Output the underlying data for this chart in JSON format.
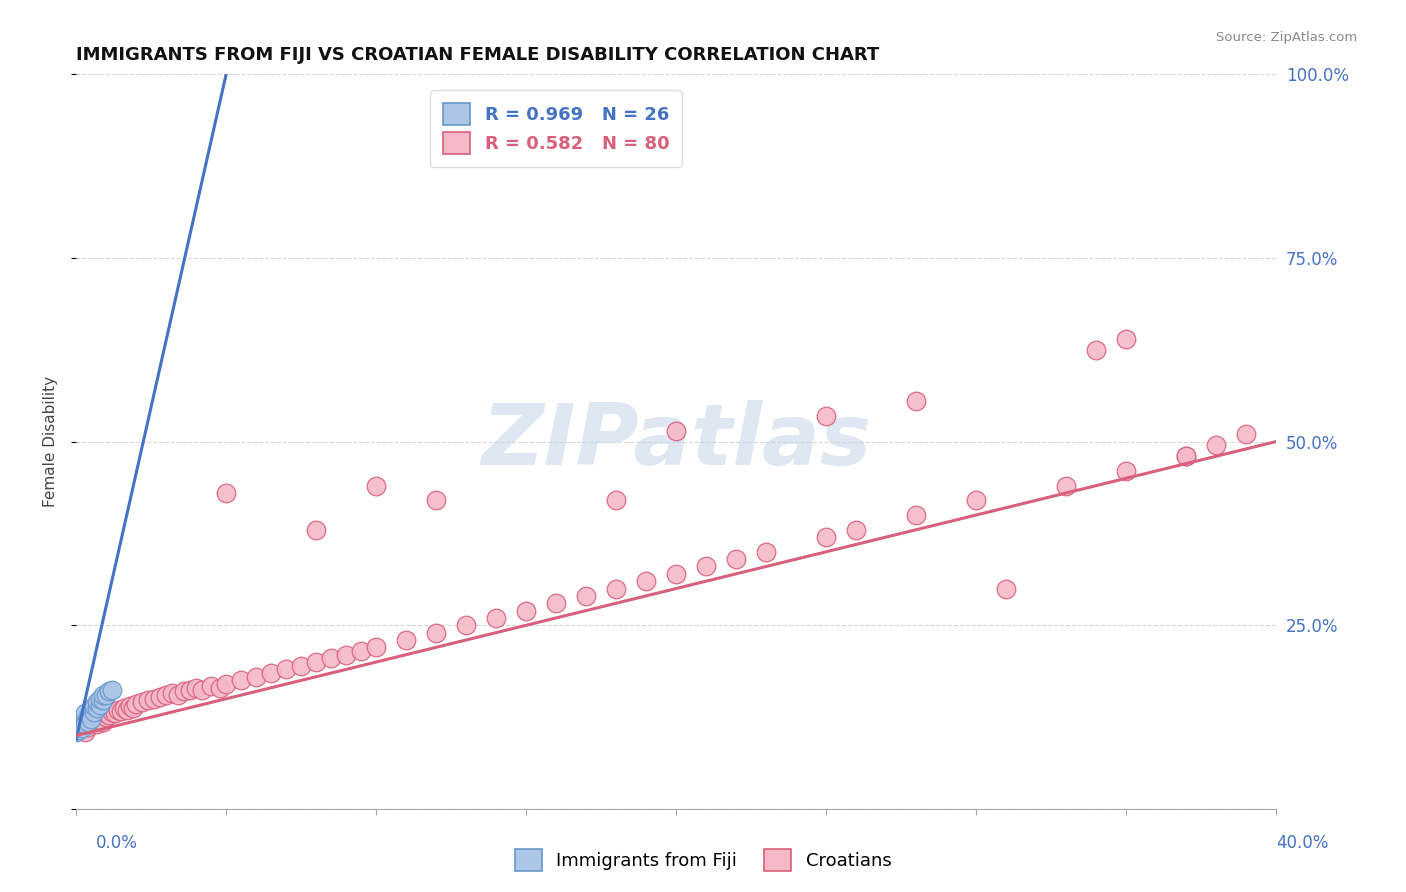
{
  "title": "IMMIGRANTS FROM FIJI VS CROATIAN FEMALE DISABILITY CORRELATION CHART",
  "source": "Source: ZipAtlas.com",
  "ylabel": "Female Disability",
  "yticks": [
    0.0,
    0.25,
    0.5,
    0.75,
    1.0
  ],
  "ytick_labels": [
    "",
    "25.0%",
    "50.0%",
    "75.0%",
    "100.0%"
  ],
  "xticks": [
    0.0,
    0.05,
    0.1,
    0.15,
    0.2,
    0.25,
    0.3,
    0.35,
    0.4
  ],
  "xlim": [
    0.0,
    0.4
  ],
  "ylim": [
    0.0,
    1.0
  ],
  "fiji_color": "#adc6e8",
  "fiji_edge_color": "#6699cc",
  "croatian_color": "#f5b8c8",
  "croatian_edge_color": "#d9607a",
  "fiji_R": 0.969,
  "fiji_N": 26,
  "croatian_R": 0.582,
  "croatian_N": 80,
  "fiji_line_color": "#4472c4",
  "croatian_line_color": "#d9607a",
  "background_color": "#ffffff",
  "fiji_points_x": [
    0.0,
    0.001,
    0.001,
    0.001,
    0.002,
    0.002,
    0.002,
    0.003,
    0.003,
    0.003,
    0.004,
    0.004,
    0.005,
    0.005,
    0.005,
    0.006,
    0.006,
    0.007,
    0.007,
    0.008,
    0.008,
    0.009,
    0.009,
    0.01,
    0.011,
    0.012
  ],
  "fiji_points_y": [
    0.105,
    0.112,
    0.118,
    0.108,
    0.115,
    0.122,
    0.11,
    0.12,
    0.13,
    0.115,
    0.125,
    0.118,
    0.128,
    0.135,
    0.122,
    0.132,
    0.14,
    0.138,
    0.145,
    0.142,
    0.15,
    0.148,
    0.155,
    0.155,
    0.16,
    0.162
  ],
  "fiji_line_x0": 0.0,
  "fiji_line_y0": 0.095,
  "fiji_line_x1": 0.05,
  "fiji_line_y1": 1.0,
  "croatian_line_x0": 0.0,
  "croatian_line_y0": 0.1,
  "croatian_line_x1": 0.4,
  "croatian_line_y1": 0.5,
  "croatian_points_x": [
    0.0,
    0.001,
    0.001,
    0.002,
    0.002,
    0.003,
    0.003,
    0.004,
    0.004,
    0.005,
    0.005,
    0.006,
    0.006,
    0.007,
    0.007,
    0.008,
    0.008,
    0.009,
    0.01,
    0.01,
    0.011,
    0.012,
    0.013,
    0.014,
    0.015,
    0.016,
    0.017,
    0.018,
    0.019,
    0.02,
    0.022,
    0.024,
    0.026,
    0.028,
    0.03,
    0.032,
    0.034,
    0.036,
    0.038,
    0.04,
    0.042,
    0.045,
    0.048,
    0.05,
    0.055,
    0.06,
    0.065,
    0.07,
    0.075,
    0.08,
    0.085,
    0.09,
    0.095,
    0.1,
    0.11,
    0.12,
    0.13,
    0.14,
    0.15,
    0.16,
    0.17,
    0.18,
    0.19,
    0.2,
    0.21,
    0.22,
    0.23,
    0.25,
    0.26,
    0.28,
    0.3,
    0.33,
    0.35,
    0.37,
    0.38,
    0.39,
    0.12,
    0.2,
    0.28,
    0.35
  ],
  "croatian_points_y": [
    0.108,
    0.112,
    0.115,
    0.11,
    0.118,
    0.105,
    0.12,
    0.112,
    0.118,
    0.115,
    0.122,
    0.118,
    0.125,
    0.115,
    0.122,
    0.12,
    0.128,
    0.118,
    0.125,
    0.13,
    0.128,
    0.132,
    0.13,
    0.135,
    0.133,
    0.138,
    0.135,
    0.14,
    0.138,
    0.143,
    0.145,
    0.148,
    0.15,
    0.152,
    0.155,
    0.158,
    0.155,
    0.16,
    0.162,
    0.165,
    0.162,
    0.168,
    0.165,
    0.17,
    0.175,
    0.18,
    0.185,
    0.19,
    0.195,
    0.2,
    0.205,
    0.21,
    0.215,
    0.22,
    0.23,
    0.24,
    0.25,
    0.26,
    0.27,
    0.28,
    0.29,
    0.3,
    0.31,
    0.32,
    0.33,
    0.34,
    0.35,
    0.37,
    0.38,
    0.4,
    0.42,
    0.44,
    0.46,
    0.48,
    0.495,
    0.51,
    0.42,
    0.515,
    0.555,
    0.64
  ],
  "croatian_outliers_x": [
    0.05,
    0.08,
    0.1,
    0.18,
    0.25,
    0.31,
    0.34,
    0.37
  ],
  "croatian_outliers_y": [
    0.43,
    0.38,
    0.44,
    0.42,
    0.535,
    0.3,
    0.625,
    0.48
  ],
  "watermark_text": "ZIPatlas",
  "watermark_color": "#c8d8ea",
  "watermark_alpha": 0.6
}
